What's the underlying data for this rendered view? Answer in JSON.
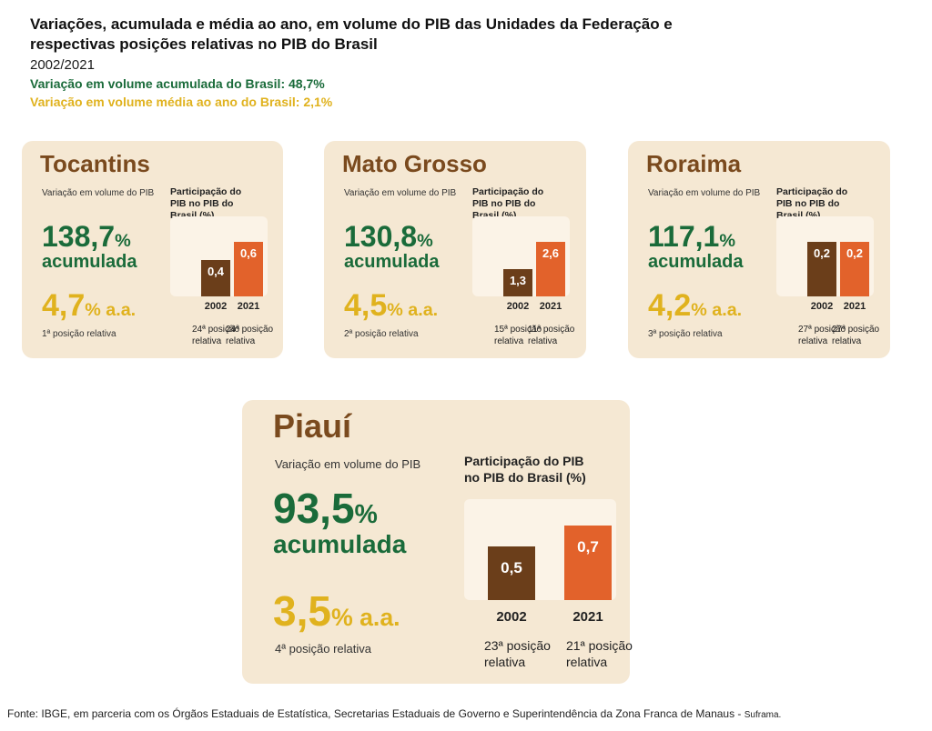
{
  "header": {
    "title_line1": "Variações, acumulada e média ao ano, em volume do PIB das Unidades da Federação e",
    "title_line2": "respectivas posições relativas no PIB do Brasil",
    "period": "2002/2021",
    "brasil_acumulada": "Variação em volume acumulada do Brasil: 48,7%",
    "brasil_media": "Variação em volume média ao ano do Brasil: 2,1%"
  },
  "labels": {
    "variacao": "Variação em volume do PIB",
    "participacao": "Participação do PIB no PIB do Brasil (%)",
    "acumulada": "acumulada",
    "aa": "a.a.",
    "pct": "%"
  },
  "colors": {
    "green": "#1a6b3a",
    "yellow": "#e0b21e",
    "bar_2002": "#6b3e1a",
    "bar_2021": "#e2622b",
    "card_bg": "#f5e8d3"
  },
  "chart_data": [
    {
      "type": "bar",
      "state": "Tocantins",
      "acumulada": "138,7",
      "media": "4,7",
      "rank": "1ª posição relativa",
      "categories": [
        "2002",
        "2021"
      ],
      "values": [
        0.4,
        0.6
      ],
      "value_labels": [
        "0,4",
        "0,6"
      ],
      "positions": [
        "24ª posição relativa",
        "24ª posição relativa"
      ]
    },
    {
      "type": "bar",
      "state": "Mato Grosso",
      "acumulada": "130,8",
      "media": "4,5",
      "rank": "2ª posição relativa",
      "categories": [
        "2002",
        "2021"
      ],
      "values": [
        1.3,
        2.6
      ],
      "value_labels": [
        "1,3",
        "2,6"
      ],
      "positions": [
        "15ª posição relativa",
        "11ª posição relativa"
      ]
    },
    {
      "type": "bar",
      "state": "Roraima",
      "acumulada": "117,1",
      "media": "4,2",
      "rank": "3ª posição relativa",
      "categories": [
        "2002",
        "2021"
      ],
      "values": [
        0.2,
        0.2
      ],
      "value_labels": [
        "0,2",
        "0,2"
      ],
      "positions": [
        "27ª posição relativa",
        "27ª posição relativa"
      ]
    },
    {
      "type": "bar",
      "state": "Piauí",
      "acumulada": "93,5",
      "media": "3,5",
      "rank": "4ª posição relativa",
      "categories": [
        "2002",
        "2021"
      ],
      "values": [
        0.5,
        0.7
      ],
      "value_labels": [
        "0,5",
        "0,7"
      ],
      "positions": [
        "23ª posição relativa",
        "21ª posição relativa"
      ]
    }
  ],
  "footer": {
    "fonte": "Fonte: IBGE, em parceria com os Órgãos Estaduais de Estatística, Secretarias Estaduais de Governo e Superintendência da Zona Franca de Manaus - ",
    "suframa": "Suframa."
  }
}
